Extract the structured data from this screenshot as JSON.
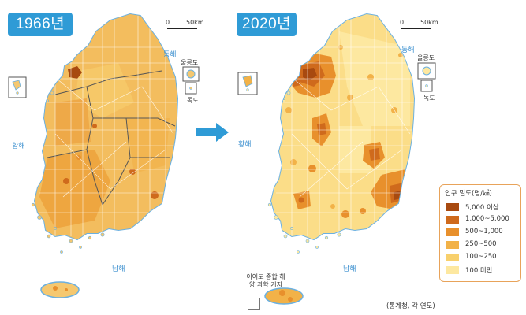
{
  "maps": [
    {
      "year_label": "1966년"
    },
    {
      "year_label": "2020년"
    }
  ],
  "seas": {
    "east": "동해",
    "west": "황해",
    "south": "남해"
  },
  "islands": {
    "ulleungdo": "울릉도",
    "dokdo": "독도"
  },
  "scale": {
    "zero": "0",
    "distance": "50km"
  },
  "research_station": "이어도 종합 해양 과학 기지",
  "legend": {
    "title": "인구 밀도(명/㎢)",
    "items": [
      {
        "label": "5,000 이상",
        "color": "#a84a10"
      },
      {
        "label": "1,000~5,000",
        "color": "#cf6a1c"
      },
      {
        "label": "500~1,000",
        "color": "#e8902c"
      },
      {
        "label": "250~500",
        "color": "#f2b248"
      },
      {
        "label": "100~250",
        "color": "#f8d06c"
      },
      {
        "label": "100 미만",
        "color": "#fde8a0"
      }
    ]
  },
  "source": "(통계청, 각 연도)",
  "colors": {
    "badge": "#2f9bd6",
    "arrow": "#2f9bd6",
    "coast": "#6bb0e0",
    "border_dark": "#555555",
    "border_light": "#ffffff"
  }
}
